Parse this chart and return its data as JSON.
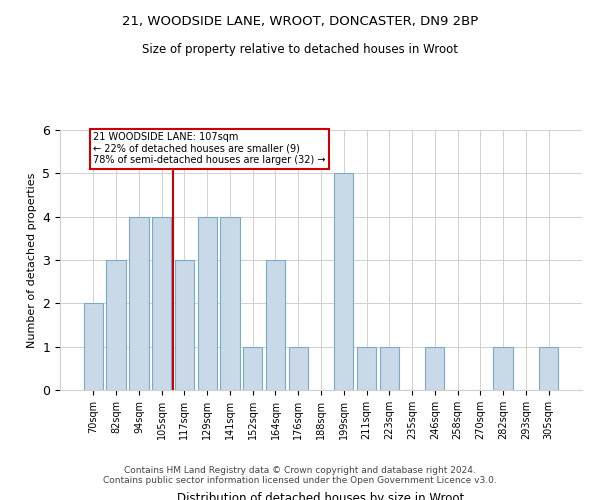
{
  "title1": "21, WOODSIDE LANE, WROOT, DONCASTER, DN9 2BP",
  "title2": "Size of property relative to detached houses in Wroot",
  "xlabel": "Distribution of detached houses by size in Wroot",
  "ylabel": "Number of detached properties",
  "categories": [
    "70sqm",
    "82sqm",
    "94sqm",
    "105sqm",
    "117sqm",
    "129sqm",
    "141sqm",
    "152sqm",
    "164sqm",
    "176sqm",
    "188sqm",
    "199sqm",
    "211sqm",
    "223sqm",
    "235sqm",
    "246sqm",
    "258sqm",
    "270sqm",
    "282sqm",
    "293sqm",
    "305sqm"
  ],
  "values": [
    2,
    3,
    4,
    4,
    3,
    4,
    4,
    1,
    3,
    1,
    0,
    5,
    1,
    1,
    0,
    1,
    0,
    0,
    1,
    0,
    1
  ],
  "bar_color": "#c9d9e8",
  "bar_edgecolor": "#7aaac8",
  "highlight_index": 3,
  "highlight_color_red": "#cc0000",
  "annotation_text": "21 WOODSIDE LANE: 107sqm\n← 22% of detached houses are smaller (9)\n78% of semi-detached houses are larger (32) →",
  "annotation_box_color": "white",
  "annotation_box_edgecolor": "#cc0000",
  "ylim": [
    0,
    6
  ],
  "yticks": [
    0,
    1,
    2,
    3,
    4,
    5,
    6
  ],
  "footer": "Contains HM Land Registry data © Crown copyright and database right 2024.\nContains public sector information licensed under the Open Government Licence v3.0.",
  "bg_color": "white",
  "grid_color": "#d0d0d0"
}
